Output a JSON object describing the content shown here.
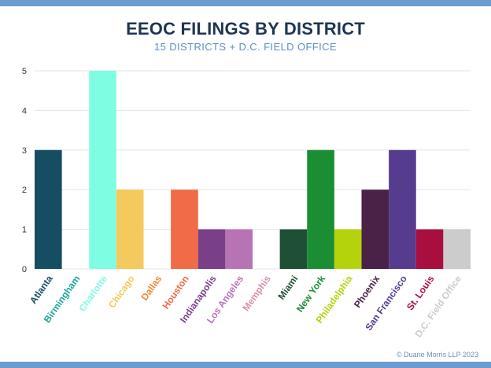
{
  "header": {
    "title": "EEOC FILINGS BY DISTRICT",
    "subtitle": "15 DISTRICTS + D.C. FIELD OFFICE"
  },
  "footer": {
    "copyright": "© Duane Morris LLP 2023"
  },
  "colors": {
    "frame": "#6b9bd1",
    "title": "#1d3553",
    "subtitle": "#5b8fc7",
    "gridline": "#e4e4e4"
  },
  "chart_data": {
    "type": "bar",
    "title": "EEOC FILINGS BY DISTRICT",
    "subtitle": "15 DISTRICTS + D.C. FIELD OFFICE",
    "xlabel": "",
    "ylabel": "",
    "ylim": [
      0,
      5
    ],
    "yticks": [
      "0",
      "1",
      "2",
      "3",
      "4",
      "5"
    ],
    "grid": true,
    "legend": "none",
    "categories": [
      "Atlanta",
      "Birmingham",
      "Charlotte",
      "Chicago",
      "Dallas",
      "Houston",
      "Indianapolis",
      "Los Angeles",
      "Memphis",
      "Miami",
      "New York",
      "Philadelphia",
      "Phoenix",
      "San Francisco",
      "St. Louis",
      "D.C. Field Office"
    ],
    "values": [
      3,
      0,
      5,
      2,
      0,
      2,
      1,
      1,
      0,
      1,
      3,
      1,
      2,
      3,
      1,
      1
    ],
    "bar_colors": [
      "#154e63",
      "#1aa89c",
      "#7ffde3",
      "#f4c95d",
      "#f08a3c",
      "#f26b47",
      "#793f88",
      "#b773b3",
      "#d98fb0",
      "#1e5035",
      "#1b8e34",
      "#b5d30d",
      "#4a2147",
      "#553c8f",
      "#a90f3e",
      "#cccccc"
    ],
    "label_colors": [
      "#154e63",
      "#1aa89c",
      "#7ffde3",
      "#f4c95d",
      "#f08a3c",
      "#f26b47",
      "#793f88",
      "#b773b3",
      "#d98fb0",
      "#1e5035",
      "#1b8e34",
      "#b5d30d",
      "#4a2147",
      "#553c8f",
      "#a90f3e",
      "#cccccc"
    ]
  }
}
